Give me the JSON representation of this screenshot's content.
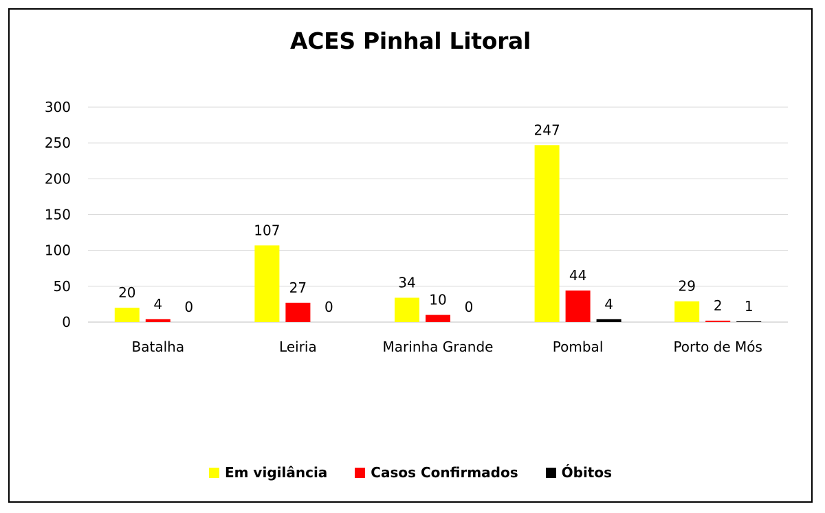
{
  "chart_data": {
    "type": "bar",
    "title": "ACES Pinhal Litoral",
    "xlabel": "",
    "ylabel": "",
    "ylim": [
      0,
      300
    ],
    "yticks": [
      0,
      50,
      100,
      150,
      200,
      250,
      300
    ],
    "grid": true,
    "legend_position": "bottom",
    "categories": [
      "Batalha",
      "Leiria",
      "Marinha Grande",
      "Pombal",
      "Porto de Mós"
    ],
    "series": [
      {
        "name": "Em vigilância",
        "color": "#ffff00",
        "values": [
          20,
          107,
          34,
          247,
          29
        ]
      },
      {
        "name": "Casos Confirmados",
        "color": "#ff0000",
        "values": [
          4,
          27,
          10,
          44,
          2
        ]
      },
      {
        "name": "Óbitos",
        "color": "#000000",
        "values": [
          0,
          0,
          0,
          4,
          1
        ]
      }
    ]
  }
}
